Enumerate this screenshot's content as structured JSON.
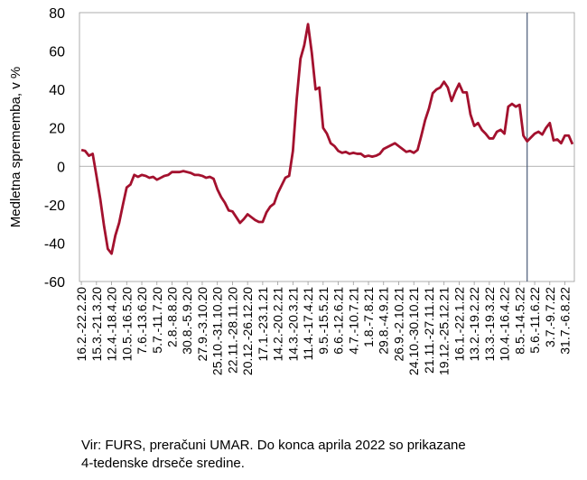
{
  "chart_data": {
    "type": "line",
    "ylabel": "Medletna sprememba, v %",
    "ylim": [
      -60,
      80
    ],
    "yticks": [
      -60,
      -40,
      -20,
      0,
      20,
      40,
      60,
      80
    ],
    "grid": false,
    "legend": "none",
    "series_color": "#a3112e",
    "vertical_line_color": "#4a5a78",
    "vertical_line_at_index": 118,
    "xtick_labels": [
      "16.2.-22.2.20",
      "15.3.-21.3.20",
      "12.4.-18.4.20",
      "10.5.-16.5.20",
      "7.6.-13.6.20",
      "5.7.-11.7.20",
      "2.8.-8.8.20",
      "30.8.-5.9.20",
      "27.9.-3.10.20",
      "25.10.-31.10.20",
      "22.11.-28.11.20",
      "20.12.-26.12.20",
      "17.1.-23.1.21",
      "14.2.-20.2.21",
      "14.3.-20.3.21",
      "11.4.-17.4.21",
      "9.5.-15.5.21",
      "6.6.-12.6.21",
      "4.7.-10.7.21",
      "1.8.-7.8.21",
      "29.8.-4.9.21",
      "26.9.-2.10.21",
      "24.10.-30.10.21",
      "21.11.-27.11.21",
      "19.12.-25.12.21",
      "16.1.-22.1.22",
      "13.2.-19.2.22",
      "13.3.-19.3.22",
      "10.4.-16.4.22",
      "8.5.-14.5.22",
      "5.6.-11.6.22",
      "3.7.-9.7.22",
      "31.7.-6.8.22"
    ],
    "values": [
      8.5,
      8,
      5.5,
      6.5,
      -5,
      -17,
      -31,
      -43,
      -45.5,
      -36,
      -29.5,
      -20,
      -11,
      -9.5,
      -4.5,
      -5.5,
      -4.5,
      -5,
      -6,
      -5.5,
      -7,
      -6,
      -5,
      -4.5,
      -3,
      -3,
      -3,
      -2.5,
      -3,
      -3.5,
      -4.5,
      -4.5,
      -5,
      -6,
      -5.5,
      -6.5,
      -12,
      -16,
      -19,
      -23,
      -23.5,
      -26.5,
      -29.5,
      -27.5,
      -25,
      -26.5,
      -28,
      -29,
      -29,
      -24,
      -21,
      -19.5,
      -14,
      -10,
      -6,
      -5,
      8,
      35,
      56,
      63,
      74,
      59,
      40,
      41,
      20,
      17,
      12,
      10.5,
      8,
      7,
      7.5,
      6.5,
      7,
      6.5,
      6.5,
      5,
      5.5,
      5,
      5.5,
      6.5,
      9,
      10,
      11,
      12,
      10.5,
      9,
      7.5,
      8,
      7,
      8.5,
      16,
      24,
      30,
      38,
      40,
      41,
      44,
      41,
      34,
      39,
      43,
      38.5,
      38.5,
      27,
      21,
      22.5,
      19,
      17,
      14.5,
      14.5,
      18,
      19,
      17,
      31,
      32.5,
      31,
      32,
      16,
      13,
      15,
      17,
      18,
      16.5,
      20,
      22.5,
      13.5,
      14,
      12,
      16,
      16,
      11.5
    ]
  },
  "source_note": {
    "line1": "Vir: FURS, preračuni UMAR. Do konca aprila 2022 so prikazane",
    "line2": "4-tedenske drseče sredine."
  }
}
